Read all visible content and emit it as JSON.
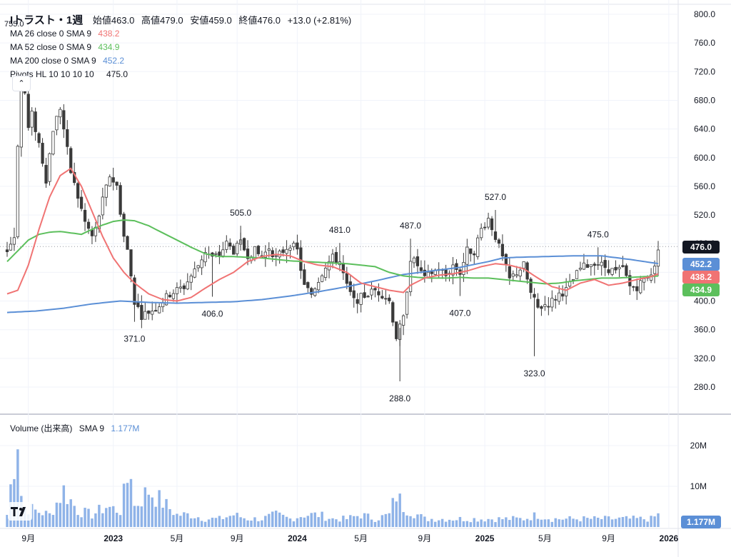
{
  "header": {
    "title": "Iトラスト・1週",
    "open_label": "始値",
    "open": "463.0",
    "high_label": "高値",
    "high": "479.0",
    "low_label": "安値",
    "low": "459.0",
    "close_label": "終値",
    "close": "476.0",
    "change": "+13.0 (+2.81%)",
    "corner_value": "755.0"
  },
  "indicators": [
    {
      "label": "MA 26 close 0 SMA 9",
      "value": "438.2",
      "color": "#f07373"
    },
    {
      "label": "MA 52 close 0 SMA 9",
      "value": "434.9",
      "color": "#5cbf5c"
    },
    {
      "label": "MA 200 close 0 SMA 9",
      "value": "452.2",
      "color": "#5b8fd6"
    },
    {
      "label": "Pivots HL 10 10 10 10",
      "value": "475.0",
      "color": "#131722"
    }
  ],
  "collapse_icon": "chevron-up-icon",
  "volume_legend": {
    "label": "Volume (出来高)",
    "sma": "SMA 9",
    "value": "1.177M",
    "color": "#5b8fd6"
  },
  "price_tags": [
    {
      "value": "476.0",
      "color": "#131722",
      "price": 476
    },
    {
      "value": "452.2",
      "color": "#5b8fd6",
      "price": 452.2
    },
    {
      "value": "438.2",
      "color": "#f07373",
      "price": 438.2
    },
    {
      "value": "434.9",
      "color": "#5cbf5c",
      "price": 434.9
    }
  ],
  "volume_tag": "1.177M",
  "colors": {
    "up": "#ffffff",
    "down": "#3a3a3a",
    "wick": "#3a3a3a",
    "volume": "#8fb3e8",
    "grid": "#f0f3fa"
  },
  "chart_data": {
    "type": "candlestick",
    "interval": "1 week",
    "price_axis": {
      "ticks": [
        800,
        760,
        720,
        680,
        640,
        600,
        560,
        520,
        480,
        440,
        400,
        360,
        320,
        280
      ],
      "labels": [
        "800.0",
        "760.0",
        "720.0",
        "680.0",
        "640.0",
        "600.0",
        "560.0",
        "520.0",
        "480.0",
        "440.0",
        "400.0",
        "360.0",
        "320.0",
        "280.0"
      ],
      "ylim": [
        240,
        810
      ]
    },
    "volume_axis": {
      "ticks": [
        20,
        10
      ],
      "labels": [
        "20M",
        "10M"
      ],
      "ylim": [
        0,
        28
      ]
    },
    "x_axis_labels": [
      "9月",
      "2023",
      "5月",
      "9月",
      "2024",
      "5月",
      "9月",
      "2025",
      "5月",
      "9月",
      "2026"
    ],
    "x_axis_label_weeks": [
      6,
      30,
      48,
      65,
      82,
      100,
      118,
      135,
      152,
      170,
      187
    ],
    "pivots": [
      {
        "label": "371.0",
        "week": 36,
        "price": 371,
        "pos": "low"
      },
      {
        "label": "406.0",
        "week": 58,
        "price": 406,
        "pos": "low"
      },
      {
        "label": "505.0",
        "week": 66,
        "price": 505,
        "pos": "high"
      },
      {
        "label": "481.0",
        "week": 94,
        "price": 481,
        "pos": "high"
      },
      {
        "label": "487.0",
        "week": 114,
        "price": 487,
        "pos": "high"
      },
      {
        "label": "288.0",
        "week": 111,
        "price": 288,
        "pos": "low"
      },
      {
        "label": "407.0",
        "week": 128,
        "price": 407,
        "pos": "low"
      },
      {
        "label": "527.0",
        "week": 138,
        "price": 527,
        "pos": "high"
      },
      {
        "label": "323.0",
        "week": 149,
        "price": 323,
        "pos": "low"
      },
      {
        "label": "475.0",
        "week": 167,
        "price": 475,
        "pos": "high"
      }
    ],
    "close_anchors": [
      [
        0,
        470
      ],
      [
        2,
        490
      ],
      [
        3,
        620
      ],
      [
        4,
        700
      ],
      [
        5,
        690
      ],
      [
        6,
        640
      ],
      [
        7,
        660
      ],
      [
        9,
        620
      ],
      [
        11,
        570
      ],
      [
        13,
        640
      ],
      [
        15,
        670
      ],
      [
        16,
        640
      ],
      [
        18,
        580
      ],
      [
        20,
        545
      ],
      [
        22,
        510
      ],
      [
        24,
        490
      ],
      [
        25,
        500
      ],
      [
        27,
        540
      ],
      [
        29,
        575
      ],
      [
        31,
        560
      ],
      [
        33,
        490
      ],
      [
        34,
        470
      ],
      [
        36,
        400
      ],
      [
        38,
        380
      ],
      [
        42,
        390
      ],
      [
        46,
        410
      ],
      [
        50,
        420
      ],
      [
        54,
        450
      ],
      [
        56,
        470
      ],
      [
        58,
        460
      ],
      [
        60,
        465
      ],
      [
        62,
        480
      ],
      [
        64,
        470
      ],
      [
        66,
        480
      ],
      [
        68,
        465
      ],
      [
        70,
        470
      ],
      [
        72,
        460
      ],
      [
        74,
        475
      ],
      [
        76,
        460
      ],
      [
        78,
        470
      ],
      [
        80,
        480
      ],
      [
        82,
        470
      ],
      [
        84,
        420
      ],
      [
        86,
        410
      ],
      [
        88,
        430
      ],
      [
        90,
        450
      ],
      [
        92,
        460
      ],
      [
        94,
        455
      ],
      [
        96,
        420
      ],
      [
        98,
        400
      ],
      [
        100,
        405
      ],
      [
        102,
        410
      ],
      [
        104,
        415
      ],
      [
        106,
        410
      ],
      [
        108,
        400
      ],
      [
        110,
        350
      ],
      [
        112,
        375
      ],
      [
        114,
        460
      ],
      [
        116,
        450
      ],
      [
        118,
        430
      ],
      [
        120,
        440
      ],
      [
        122,
        445
      ],
      [
        124,
        435
      ],
      [
        126,
        450
      ],
      [
        128,
        440
      ],
      [
        130,
        470
      ],
      [
        132,
        470
      ],
      [
        134,
        500
      ],
      [
        136,
        515
      ],
      [
        138,
        490
      ],
      [
        140,
        460
      ],
      [
        142,
        430
      ],
      [
        144,
        440
      ],
      [
        146,
        450
      ],
      [
        148,
        410
      ],
      [
        150,
        390
      ],
      [
        152,
        395
      ],
      [
        154,
        400
      ],
      [
        156,
        410
      ],
      [
        158,
        415
      ],
      [
        160,
        430
      ],
      [
        162,
        445
      ],
      [
        164,
        450
      ],
      [
        166,
        455
      ],
      [
        168,
        450
      ],
      [
        170,
        445
      ],
      [
        172,
        440
      ],
      [
        174,
        445
      ],
      [
        176,
        420
      ],
      [
        178,
        420
      ],
      [
        180,
        430
      ],
      [
        182,
        440
      ],
      [
        183,
        445
      ],
      [
        184,
        476
      ]
    ],
    "ma26_anchors": [
      [
        0,
        410
      ],
      [
        3,
        415
      ],
      [
        6,
        450
      ],
      [
        9,
        500
      ],
      [
        12,
        545
      ],
      [
        15,
        575
      ],
      [
        18,
        585
      ],
      [
        21,
        560
      ],
      [
        24,
        525
      ],
      [
        27,
        490
      ],
      [
        30,
        460
      ],
      [
        33,
        440
      ],
      [
        36,
        425
      ],
      [
        40,
        410
      ],
      [
        44,
        402
      ],
      [
        48,
        400
      ],
      [
        52,
        405
      ],
      [
        56,
        418
      ],
      [
        60,
        430
      ],
      [
        64,
        440
      ],
      [
        68,
        455
      ],
      [
        72,
        462
      ],
      [
        76,
        465
      ],
      [
        80,
        463
      ],
      [
        84,
        455
      ],
      [
        88,
        450
      ],
      [
        92,
        448
      ],
      [
        96,
        440
      ],
      [
        100,
        425
      ],
      [
        104,
        420
      ],
      [
        108,
        415
      ],
      [
        112,
        412
      ],
      [
        114,
        422
      ],
      [
        118,
        432
      ],
      [
        122,
        436
      ],
      [
        126,
        438
      ],
      [
        130,
        442
      ],
      [
        134,
        448
      ],
      [
        138,
        452
      ],
      [
        142,
        450
      ],
      [
        146,
        445
      ],
      [
        150,
        432
      ],
      [
        154,
        420
      ],
      [
        158,
        415
      ],
      [
        162,
        425
      ],
      [
        166,
        430
      ],
      [
        170,
        422
      ],
      [
        174,
        425
      ],
      [
        178,
        430
      ],
      [
        182,
        434
      ],
      [
        184,
        438
      ]
    ],
    "ma52_anchors": [
      [
        0,
        455
      ],
      [
        3,
        470
      ],
      [
        6,
        485
      ],
      [
        9,
        493
      ],
      [
        12,
        496
      ],
      [
        15,
        497
      ],
      [
        18,
        495
      ],
      [
        21,
        493
      ],
      [
        24,
        500
      ],
      [
        27,
        506
      ],
      [
        30,
        511
      ],
      [
        33,
        513
      ],
      [
        36,
        512
      ],
      [
        40,
        505
      ],
      [
        44,
        495
      ],
      [
        48,
        485
      ],
      [
        52,
        475
      ],
      [
        56,
        466
      ],
      [
        60,
        462
      ],
      [
        64,
        462
      ],
      [
        68,
        461
      ],
      [
        72,
        460
      ],
      [
        76,
        458
      ],
      [
        80,
        456
      ],
      [
        84,
        455
      ],
      [
        88,
        454
      ],
      [
        92,
        453
      ],
      [
        96,
        452
      ],
      [
        100,
        450
      ],
      [
        104,
        448
      ],
      [
        108,
        440
      ],
      [
        112,
        435
      ],
      [
        116,
        433
      ],
      [
        120,
        432
      ],
      [
        124,
        432
      ],
      [
        128,
        433
      ],
      [
        132,
        432
      ],
      [
        136,
        432
      ],
      [
        140,
        430
      ],
      [
        144,
        428
      ],
      [
        148,
        426
      ],
      [
        152,
        424
      ],
      [
        156,
        425
      ],
      [
        160,
        428
      ],
      [
        164,
        430
      ],
      [
        168,
        432
      ],
      [
        172,
        432
      ],
      [
        176,
        433
      ],
      [
        180,
        434
      ],
      [
        184,
        434.9
      ]
    ],
    "ma200_anchors": [
      [
        0,
        384
      ],
      [
        8,
        386
      ],
      [
        16,
        390
      ],
      [
        24,
        396
      ],
      [
        32,
        400
      ],
      [
        40,
        398
      ],
      [
        48,
        397
      ],
      [
        56,
        398
      ],
      [
        64,
        399
      ],
      [
        72,
        402
      ],
      [
        80,
        407
      ],
      [
        88,
        413
      ],
      [
        96,
        420
      ],
      [
        104,
        428
      ],
      [
        112,
        437
      ],
      [
        120,
        442
      ],
      [
        128,
        447
      ],
      [
        136,
        455
      ],
      [
        140,
        460
      ],
      [
        144,
        461
      ],
      [
        152,
        462
      ],
      [
        160,
        463
      ],
      [
        168,
        463
      ],
      [
        176,
        458
      ],
      [
        184,
        452.2
      ]
    ],
    "volume_anchors": [
      [
        0,
        3
      ],
      [
        3,
        24
      ],
      [
        4,
        8
      ],
      [
        5,
        5
      ],
      [
        8,
        4
      ],
      [
        12,
        3
      ],
      [
        16,
        9
      ],
      [
        20,
        4
      ],
      [
        24,
        3
      ],
      [
        28,
        5
      ],
      [
        32,
        4
      ],
      [
        35,
        15
      ],
      [
        36,
        5
      ],
      [
        40,
        9
      ],
      [
        44,
        6
      ],
      [
        48,
        3
      ],
      [
        52,
        3
      ],
      [
        56,
        2
      ],
      [
        60,
        2
      ],
      [
        64,
        3
      ],
      [
        68,
        2
      ],
      [
        72,
        2
      ],
      [
        76,
        3
      ],
      [
        80,
        2
      ],
      [
        84,
        3
      ],
      [
        88,
        3
      ],
      [
        92,
        2
      ],
      [
        96,
        2
      ],
      [
        100,
        3
      ],
      [
        104,
        2
      ],
      [
        108,
        3
      ],
      [
        110,
        8
      ],
      [
        112,
        5
      ],
      [
        114,
        4
      ],
      [
        118,
        2
      ],
      [
        122,
        2
      ],
      [
        126,
        2
      ],
      [
        130,
        2
      ],
      [
        134,
        2
      ],
      [
        138,
        2
      ],
      [
        142,
        2
      ],
      [
        146,
        2
      ],
      [
        150,
        3
      ],
      [
        154,
        2
      ],
      [
        158,
        2
      ],
      [
        162,
        2
      ],
      [
        166,
        2
      ],
      [
        170,
        2
      ],
      [
        174,
        2
      ],
      [
        178,
        2
      ],
      [
        182,
        2
      ],
      [
        184,
        3
      ]
    ]
  }
}
